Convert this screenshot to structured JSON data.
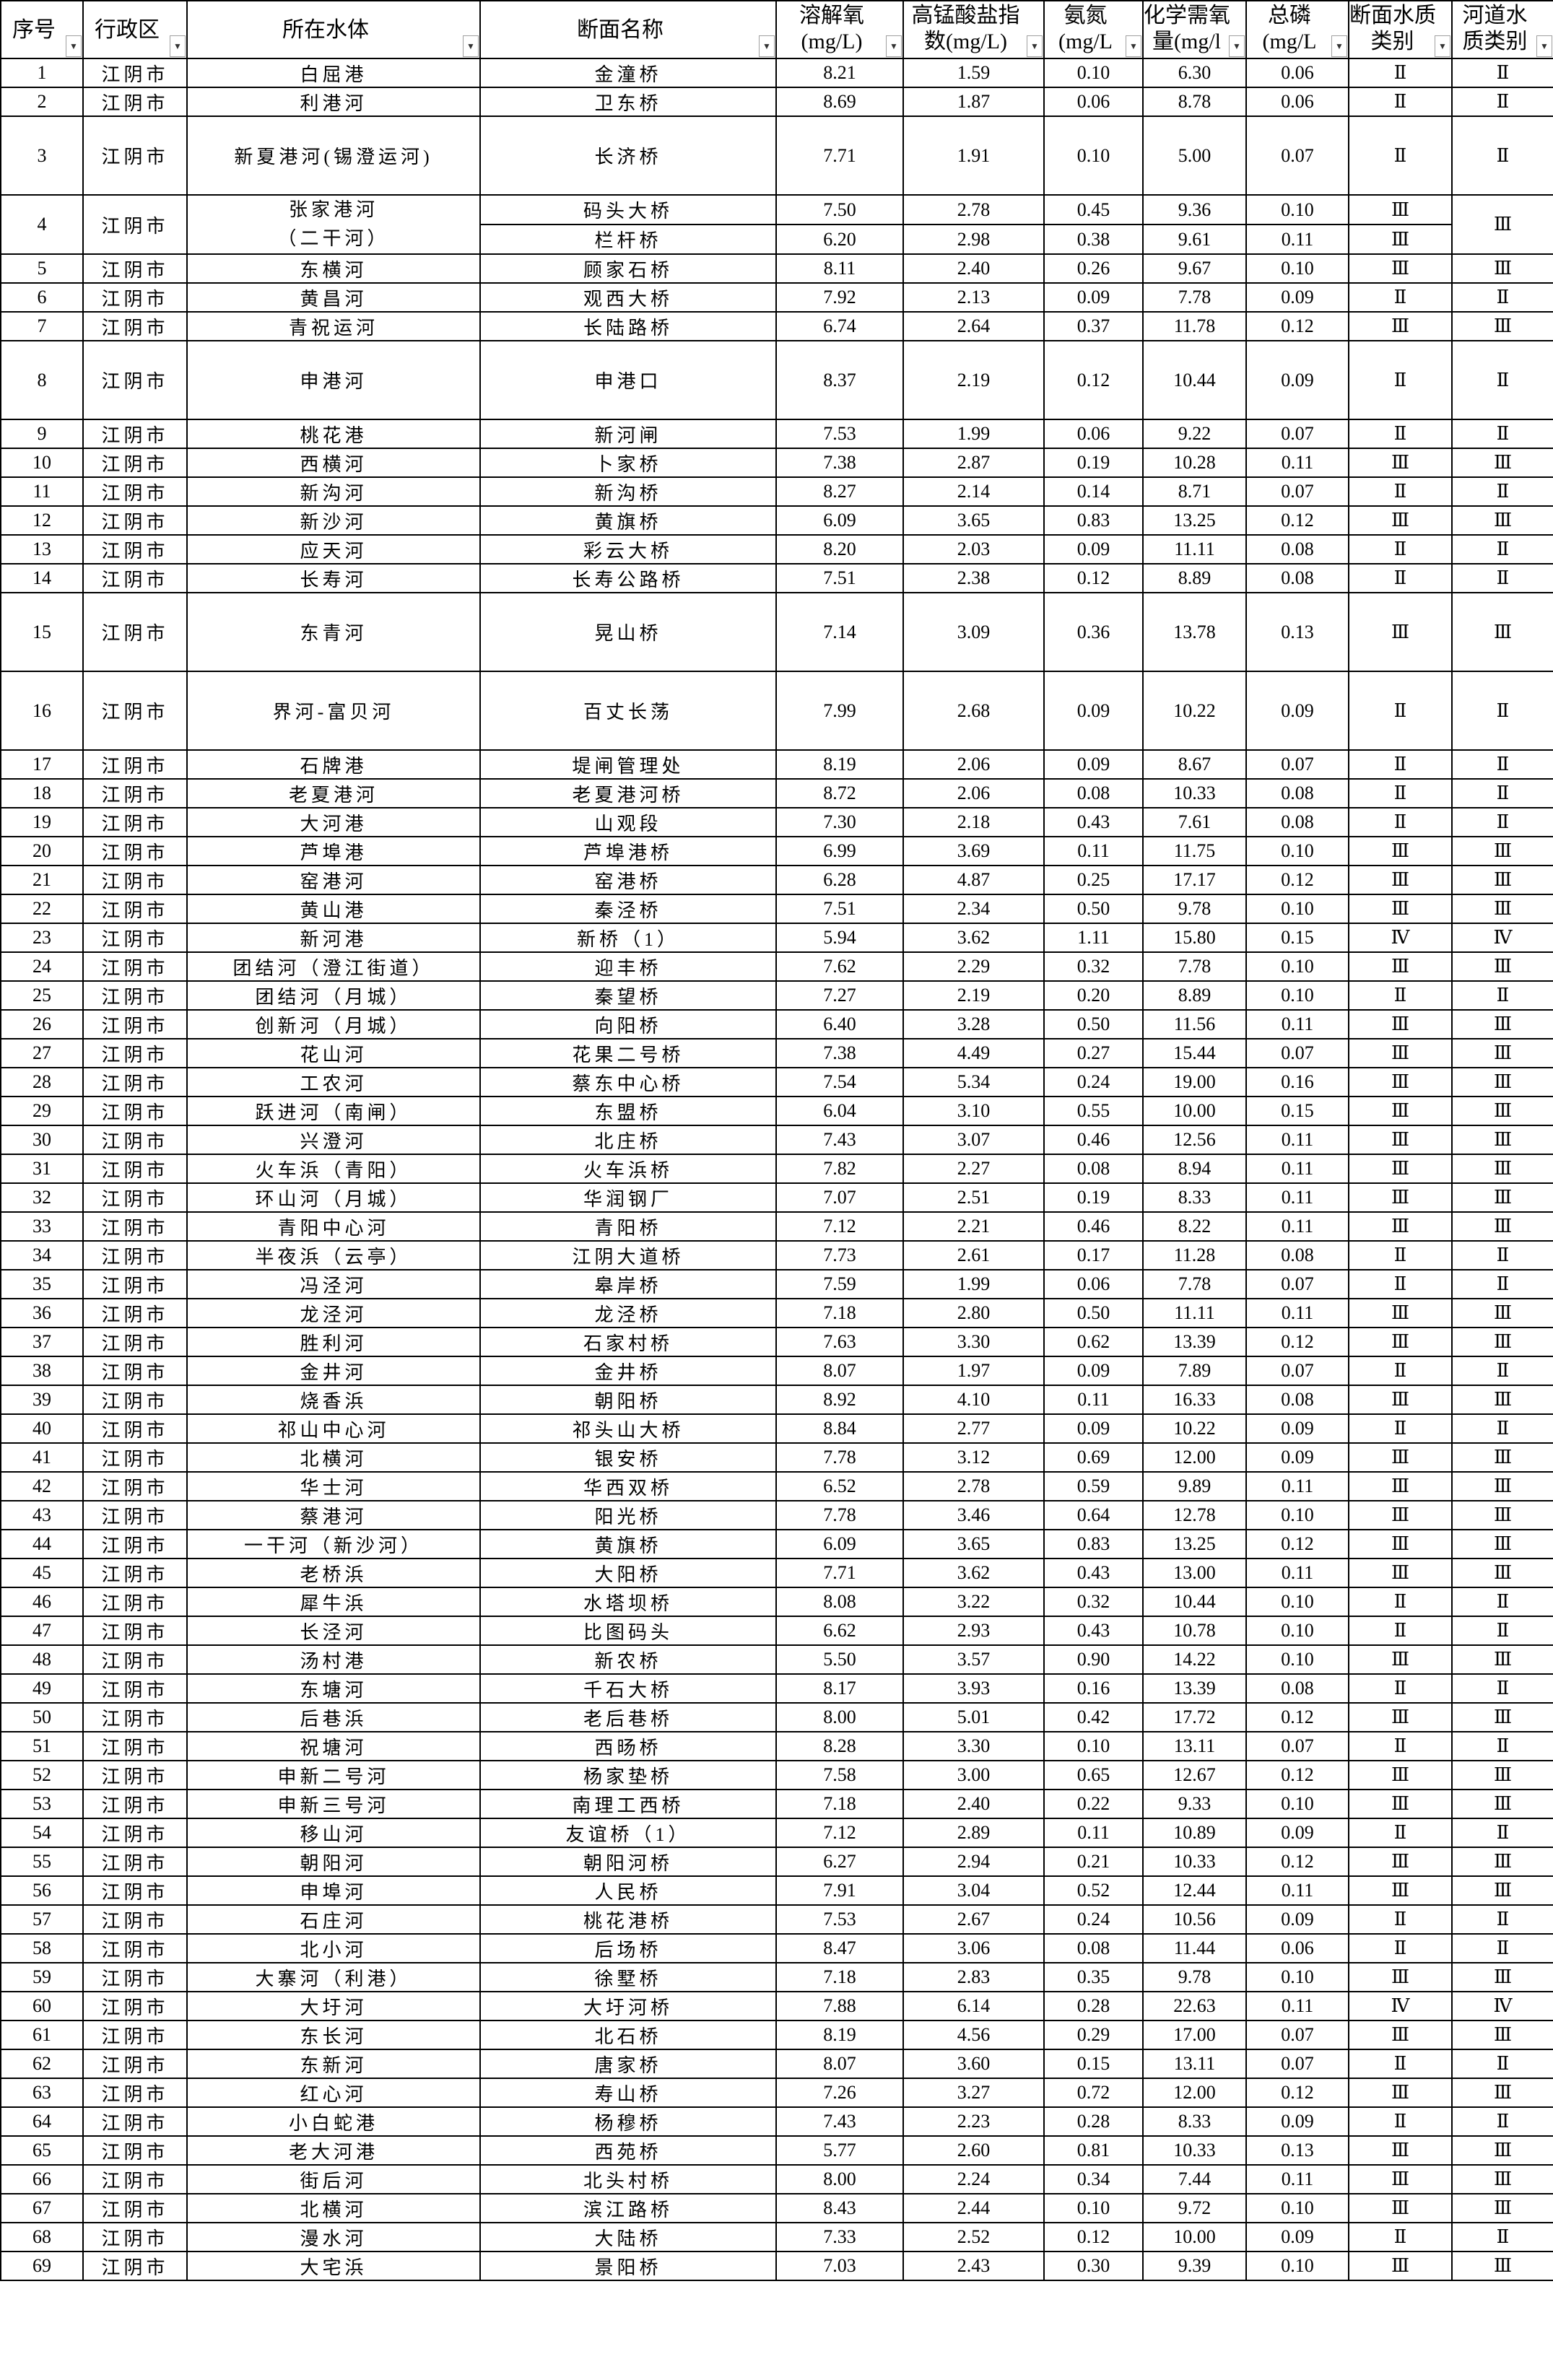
{
  "headers": [
    {
      "label": "序号"
    },
    {
      "label": "行政区"
    },
    {
      "label": "所在水体"
    },
    {
      "label": "断面名称"
    },
    {
      "label": "溶解氧",
      "unit": "(mg/L)"
    },
    {
      "label": "高锰酸盐指",
      "unit": "数(mg/L)"
    },
    {
      "label": "氨氮",
      "unit": "(mg/L"
    },
    {
      "label": "化学需氧",
      "unit": "量(mg/l"
    },
    {
      "label": "总磷",
      "unit": "(mg/L"
    },
    {
      "label": "断面水质",
      "unit": "类别"
    },
    {
      "label": "河道水",
      "unit": "质类别"
    }
  ],
  "filter_icon": "dropdown-arrow-icon",
  "rows": [
    [
      "1",
      "江阴市",
      "白屈港",
      [
        [
          "金潼桥",
          "8.21",
          "1.59",
          "0.10",
          "6.30",
          "0.06",
          "Ⅱ"
        ]
      ],
      "Ⅱ"
    ],
    [
      "2",
      "江阴市",
      "利港河",
      [
        [
          "卫东桥",
          "8.69",
          "1.87",
          "0.06",
          "8.78",
          "0.06",
          "Ⅱ"
        ]
      ],
      "Ⅱ"
    ],
    [
      "3",
      "江阴市",
      "新夏港河(锡澄运河)",
      [
        [
          "长济桥",
          "7.71",
          "1.91",
          "0.10",
          "5.00",
          "0.07",
          "Ⅱ"
        ]
      ],
      "Ⅱ"
    ],
    [
      "4",
      "江阴市",
      "张家港河（二干河）",
      [
        [
          "码头大桥",
          "7.50",
          "2.78",
          "0.45",
          "9.36",
          "0.10",
          "Ⅲ"
        ],
        [
          "栏杆桥",
          "6.20",
          "2.98",
          "0.38",
          "9.61",
          "0.11",
          "Ⅲ"
        ]
      ],
      "Ⅲ"
    ],
    [
      "5",
      "江阴市",
      "东横河",
      [
        [
          "顾家石桥",
          "8.11",
          "2.40",
          "0.26",
          "9.67",
          "0.10",
          "Ⅲ"
        ]
      ],
      "Ⅲ"
    ],
    [
      "6",
      "江阴市",
      "黄昌河",
      [
        [
          "观西大桥",
          "7.92",
          "2.13",
          "0.09",
          "7.78",
          "0.09",
          "Ⅱ"
        ]
      ],
      "Ⅱ"
    ],
    [
      "7",
      "江阴市",
      "青祝运河",
      [
        [
          "长陆路桥",
          "6.74",
          "2.64",
          "0.37",
          "11.78",
          "0.12",
          "Ⅲ"
        ]
      ],
      "Ⅲ"
    ],
    [
      "8",
      "江阴市",
      "申港河",
      [
        [
          "申港口",
          "8.37",
          "2.19",
          "0.12",
          "10.44",
          "0.09",
          "Ⅱ"
        ]
      ],
      "Ⅱ"
    ],
    [
      "9",
      "江阴市",
      "桃花港",
      [
        [
          "新河闸",
          "7.53",
          "1.99",
          "0.06",
          "9.22",
          "0.07",
          "Ⅱ"
        ]
      ],
      "Ⅱ"
    ],
    [
      "10",
      "江阴市",
      "西横河",
      [
        [
          "卜家桥",
          "7.38",
          "2.87",
          "0.19",
          "10.28",
          "0.11",
          "Ⅲ"
        ]
      ],
      "Ⅲ"
    ],
    [
      "11",
      "江阴市",
      "新沟河",
      [
        [
          "新沟桥",
          "8.27",
          "2.14",
          "0.14",
          "8.71",
          "0.07",
          "Ⅱ"
        ]
      ],
      "Ⅱ"
    ],
    [
      "12",
      "江阴市",
      "新沙河",
      [
        [
          "黄旗桥",
          "6.09",
          "3.65",
          "0.83",
          "13.25",
          "0.12",
          "Ⅲ"
        ]
      ],
      "Ⅲ"
    ],
    [
      "13",
      "江阴市",
      "应天河",
      [
        [
          "彩云大桥",
          "8.20",
          "2.03",
          "0.09",
          "11.11",
          "0.08",
          "Ⅱ"
        ]
      ],
      "Ⅱ"
    ],
    [
      "14",
      "江阴市",
      "长寿河",
      [
        [
          "长寿公路桥",
          "7.51",
          "2.38",
          "0.12",
          "8.89",
          "0.08",
          "Ⅱ"
        ]
      ],
      "Ⅱ"
    ],
    [
      "15",
      "江阴市",
      "东青河",
      [
        [
          "晃山桥",
          "7.14",
          "3.09",
          "0.36",
          "13.78",
          "0.13",
          "Ⅲ"
        ]
      ],
      "Ⅲ"
    ],
    [
      "16",
      "江阴市",
      "界河-富贝河",
      [
        [
          "百丈长荡",
          "7.99",
          "2.68",
          "0.09",
          "10.22",
          "0.09",
          "Ⅱ"
        ]
      ],
      "Ⅱ"
    ],
    [
      "17",
      "江阴市",
      "石牌港",
      [
        [
          "堤闸管理处",
          "8.19",
          "2.06",
          "0.09",
          "8.67",
          "0.07",
          "Ⅱ"
        ]
      ],
      "Ⅱ"
    ],
    [
      "18",
      "江阴市",
      "老夏港河",
      [
        [
          "老夏港河桥",
          "8.72",
          "2.06",
          "0.08",
          "10.33",
          "0.08",
          "Ⅱ"
        ]
      ],
      "Ⅱ"
    ],
    [
      "19",
      "江阴市",
      "大河港",
      [
        [
          "山观段",
          "7.30",
          "2.18",
          "0.43",
          "7.61",
          "0.08",
          "Ⅱ"
        ]
      ],
      "Ⅱ"
    ],
    [
      "20",
      "江阴市",
      "芦埠港",
      [
        [
          "芦埠港桥",
          "6.99",
          "3.69",
          "0.11",
          "11.75",
          "0.10",
          "Ⅲ"
        ]
      ],
      "Ⅲ"
    ],
    [
      "21",
      "江阴市",
      "窑港河",
      [
        [
          "窑港桥",
          "6.28",
          "4.87",
          "0.25",
          "17.17",
          "0.12",
          "Ⅲ"
        ]
      ],
      "Ⅲ"
    ],
    [
      "22",
      "江阴市",
      "黄山港",
      [
        [
          "秦泾桥",
          "7.51",
          "2.34",
          "0.50",
          "9.78",
          "0.10",
          "Ⅲ"
        ]
      ],
      "Ⅲ"
    ],
    [
      "23",
      "江阴市",
      "新河港",
      [
        [
          "新桥（1）",
          "5.94",
          "3.62",
          "1.11",
          "15.80",
          "0.15",
          "Ⅳ"
        ]
      ],
      "Ⅳ"
    ],
    [
      "24",
      "江阴市",
      "团结河（澄江街道）",
      [
        [
          "迎丰桥",
          "7.62",
          "2.29",
          "0.32",
          "7.78",
          "0.10",
          "Ⅲ"
        ]
      ],
      "Ⅲ"
    ],
    [
      "25",
      "江阴市",
      "团结河（月城）",
      [
        [
          "秦望桥",
          "7.27",
          "2.19",
          "0.20",
          "8.89",
          "0.10",
          "Ⅱ"
        ]
      ],
      "Ⅱ"
    ],
    [
      "26",
      "江阴市",
      "创新河（月城）",
      [
        [
          "向阳桥",
          "6.40",
          "3.28",
          "0.50",
          "11.56",
          "0.11",
          "Ⅲ"
        ]
      ],
      "Ⅲ"
    ],
    [
      "27",
      "江阴市",
      "花山河",
      [
        [
          "花果二号桥",
          "7.38",
          "4.49",
          "0.27",
          "15.44",
          "0.07",
          "Ⅲ"
        ]
      ],
      "Ⅲ"
    ],
    [
      "28",
      "江阴市",
      "工农河",
      [
        [
          "蔡东中心桥",
          "7.54",
          "5.34",
          "0.24",
          "19.00",
          "0.16",
          "Ⅲ"
        ]
      ],
      "Ⅲ"
    ],
    [
      "29",
      "江阴市",
      "跃进河（南闸）",
      [
        [
          "东盟桥",
          "6.04",
          "3.10",
          "0.55",
          "10.00",
          "0.15",
          "Ⅲ"
        ]
      ],
      "Ⅲ"
    ],
    [
      "30",
      "江阴市",
      "兴澄河",
      [
        [
          "北庄桥",
          "7.43",
          "3.07",
          "0.46",
          "12.56",
          "0.11",
          "Ⅲ"
        ]
      ],
      "Ⅲ"
    ],
    [
      "31",
      "江阴市",
      "火车浜（青阳）",
      [
        [
          "火车浜桥",
          "7.82",
          "2.27",
          "0.08",
          "8.94",
          "0.11",
          "Ⅲ"
        ]
      ],
      "Ⅲ"
    ],
    [
      "32",
      "江阴市",
      "环山河（月城）",
      [
        [
          "华润钢厂",
          "7.07",
          "2.51",
          "0.19",
          "8.33",
          "0.11",
          "Ⅲ"
        ]
      ],
      "Ⅲ"
    ],
    [
      "33",
      "江阴市",
      "青阳中心河",
      [
        [
          "青阳桥",
          "7.12",
          "2.21",
          "0.46",
          "8.22",
          "0.11",
          "Ⅲ"
        ]
      ],
      "Ⅲ"
    ],
    [
      "34",
      "江阴市",
      "半夜浜（云亭）",
      [
        [
          "江阴大道桥",
          "7.73",
          "2.61",
          "0.17",
          "11.28",
          "0.08",
          "Ⅱ"
        ]
      ],
      "Ⅱ"
    ],
    [
      "35",
      "江阴市",
      "冯泾河",
      [
        [
          "皋岸桥",
          "7.59",
          "1.99",
          "0.06",
          "7.78",
          "0.07",
          "Ⅱ"
        ]
      ],
      "Ⅱ"
    ],
    [
      "36",
      "江阴市",
      "龙泾河",
      [
        [
          "龙泾桥",
          "7.18",
          "2.80",
          "0.50",
          "11.11",
          "0.11",
          "Ⅲ"
        ]
      ],
      "Ⅲ"
    ],
    [
      "37",
      "江阴市",
      "胜利河",
      [
        [
          "石家村桥",
          "7.63",
          "3.30",
          "0.62",
          "13.39",
          "0.12",
          "Ⅲ"
        ]
      ],
      "Ⅲ"
    ],
    [
      "38",
      "江阴市",
      "金井河",
      [
        [
          "金井桥",
          "8.07",
          "1.97",
          "0.09",
          "7.89",
          "0.07",
          "Ⅱ"
        ]
      ],
      "Ⅱ"
    ],
    [
      "39",
      "江阴市",
      "烧香浜",
      [
        [
          "朝阳桥",
          "8.92",
          "4.10",
          "0.11",
          "16.33",
          "0.08",
          "Ⅲ"
        ]
      ],
      "Ⅲ"
    ],
    [
      "40",
      "江阴市",
      "祁山中心河",
      [
        [
          "祁头山大桥",
          "8.84",
          "2.77",
          "0.09",
          "10.22",
          "0.09",
          "Ⅱ"
        ]
      ],
      "Ⅱ"
    ],
    [
      "41",
      "江阴市",
      "北横河",
      [
        [
          "银安桥",
          "7.78",
          "3.12",
          "0.69",
          "12.00",
          "0.09",
          "Ⅲ"
        ]
      ],
      "Ⅲ"
    ],
    [
      "42",
      "江阴市",
      "华士河",
      [
        [
          "华西双桥",
          "6.52",
          "2.78",
          "0.59",
          "9.89",
          "0.11",
          "Ⅲ"
        ]
      ],
      "Ⅲ"
    ],
    [
      "43",
      "江阴市",
      "蔡港河",
      [
        [
          "阳光桥",
          "7.78",
          "3.46",
          "0.64",
          "12.78",
          "0.10",
          "Ⅲ"
        ]
      ],
      "Ⅲ"
    ],
    [
      "44",
      "江阴市",
      "一干河（新沙河）",
      [
        [
          "黄旗桥",
          "6.09",
          "3.65",
          "0.83",
          "13.25",
          "0.12",
          "Ⅲ"
        ]
      ],
      "Ⅲ"
    ],
    [
      "45",
      "江阴市",
      "老桥浜",
      [
        [
          "大阳桥",
          "7.71",
          "3.62",
          "0.43",
          "13.00",
          "0.11",
          "Ⅲ"
        ]
      ],
      "Ⅲ"
    ],
    [
      "46",
      "江阴市",
      "犀牛浜",
      [
        [
          "水塔坝桥",
          "8.08",
          "3.22",
          "0.32",
          "10.44",
          "0.10",
          "Ⅱ"
        ]
      ],
      "Ⅱ"
    ],
    [
      "47",
      "江阴市",
      "长泾河",
      [
        [
          "比图码头",
          "6.62",
          "2.93",
          "0.43",
          "10.78",
          "0.10",
          "Ⅱ"
        ]
      ],
      "Ⅱ"
    ],
    [
      "48",
      "江阴市",
      "汤村港",
      [
        [
          "新农桥",
          "5.50",
          "3.57",
          "0.90",
          "14.22",
          "0.10",
          "Ⅲ"
        ]
      ],
      "Ⅲ"
    ],
    [
      "49",
      "江阴市",
      "东塘河",
      [
        [
          "千石大桥",
          "8.17",
          "3.93",
          "0.16",
          "13.39",
          "0.08",
          "Ⅱ"
        ]
      ],
      "Ⅱ"
    ],
    [
      "50",
      "江阴市",
      "后巷浜",
      [
        [
          "老后巷桥",
          "8.00",
          "5.01",
          "0.42",
          "17.72",
          "0.12",
          "Ⅲ"
        ]
      ],
      "Ⅲ"
    ],
    [
      "51",
      "江阴市",
      "祝塘河",
      [
        [
          "西旸桥",
          "8.28",
          "3.30",
          "0.10",
          "13.11",
          "0.07",
          "Ⅱ"
        ]
      ],
      "Ⅱ"
    ],
    [
      "52",
      "江阴市",
      "申新二号河",
      [
        [
          "杨家垫桥",
          "7.58",
          "3.00",
          "0.65",
          "12.67",
          "0.12",
          "Ⅲ"
        ]
      ],
      "Ⅲ"
    ],
    [
      "53",
      "江阴市",
      "申新三号河",
      [
        [
          "南理工西桥",
          "7.18",
          "2.40",
          "0.22",
          "9.33",
          "0.10",
          "Ⅲ"
        ]
      ],
      "Ⅲ"
    ],
    [
      "54",
      "江阴市",
      "移山河",
      [
        [
          "友谊桥（1）",
          "7.12",
          "2.89",
          "0.11",
          "10.89",
          "0.09",
          "Ⅱ"
        ]
      ],
      "Ⅱ"
    ],
    [
      "55",
      "江阴市",
      "朝阳河",
      [
        [
          "朝阳河桥",
          "6.27",
          "2.94",
          "0.21",
          "10.33",
          "0.12",
          "Ⅲ"
        ]
      ],
      "Ⅲ"
    ],
    [
      "56",
      "江阴市",
      "申埠河",
      [
        [
          "人民桥",
          "7.91",
          "3.04",
          "0.52",
          "12.44",
          "0.11",
          "Ⅲ"
        ]
      ],
      "Ⅲ"
    ],
    [
      "57",
      "江阴市",
      "石庄河",
      [
        [
          "桃花港桥",
          "7.53",
          "2.67",
          "0.24",
          "10.56",
          "0.09",
          "Ⅱ"
        ]
      ],
      "Ⅱ"
    ],
    [
      "58",
      "江阴市",
      "北小河",
      [
        [
          "后场桥",
          "8.47",
          "3.06",
          "0.08",
          "11.44",
          "0.06",
          "Ⅱ"
        ]
      ],
      "Ⅱ"
    ],
    [
      "59",
      "江阴市",
      "大寨河（利港）",
      [
        [
          "徐墅桥",
          "7.18",
          "2.83",
          "0.35",
          "9.78",
          "0.10",
          "Ⅲ"
        ]
      ],
      "Ⅲ"
    ],
    [
      "60",
      "江阴市",
      "大圩河",
      [
        [
          "大圩河桥",
          "7.88",
          "6.14",
          "0.28",
          "22.63",
          "0.11",
          "Ⅳ"
        ]
      ],
      "Ⅳ"
    ],
    [
      "61",
      "江阴市",
      "东长河",
      [
        [
          "北石桥",
          "8.19",
          "4.56",
          "0.29",
          "17.00",
          "0.07",
          "Ⅲ"
        ]
      ],
      "Ⅲ"
    ],
    [
      "62",
      "江阴市",
      "东新河",
      [
        [
          "唐家桥",
          "8.07",
          "3.60",
          "0.15",
          "13.11",
          "0.07",
          "Ⅱ"
        ]
      ],
      "Ⅱ"
    ],
    [
      "63",
      "江阴市",
      "红心河",
      [
        [
          "寿山桥",
          "7.26",
          "3.27",
          "0.72",
          "12.00",
          "0.12",
          "Ⅲ"
        ]
      ],
      "Ⅲ"
    ],
    [
      "64",
      "江阴市",
      "小白蛇港",
      [
        [
          "杨穆桥",
          "7.43",
          "2.23",
          "0.28",
          "8.33",
          "0.09",
          "Ⅱ"
        ]
      ],
      "Ⅱ"
    ],
    [
      "65",
      "江阴市",
      "老大河港",
      [
        [
          "西苑桥",
          "5.77",
          "2.60",
          "0.81",
          "10.33",
          "0.13",
          "Ⅲ"
        ]
      ],
      "Ⅲ"
    ],
    [
      "66",
      "江阴市",
      "街后河",
      [
        [
          "北头村桥",
          "8.00",
          "2.24",
          "0.34",
          "7.44",
          "0.11",
          "Ⅲ"
        ]
      ],
      "Ⅲ"
    ],
    [
      "67",
      "江阴市",
      "北横河",
      [
        [
          "滨江路桥",
          "8.43",
          "2.44",
          "0.10",
          "9.72",
          "0.10",
          "Ⅲ"
        ]
      ],
      "Ⅲ"
    ],
    [
      "68",
      "江阴市",
      "漫水河",
      [
        [
          "大陆桥",
          "7.33",
          "2.52",
          "0.12",
          "10.00",
          "0.09",
          "Ⅱ"
        ]
      ],
      "Ⅱ"
    ],
    [
      "69",
      "江阴市",
      "大宅浜",
      [
        [
          "景阳桥",
          "7.03",
          "2.43",
          "0.30",
          "9.39",
          "0.10",
          "Ⅲ"
        ]
      ],
      "Ⅲ"
    ]
  ]
}
